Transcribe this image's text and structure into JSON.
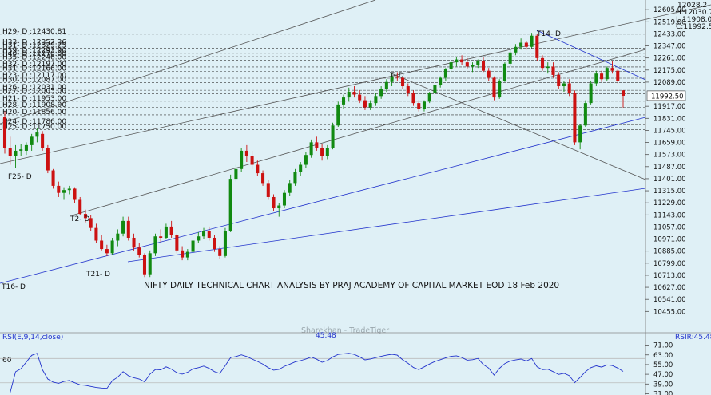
{
  "chart_data": {
    "type": "candlestick",
    "title": "NIFTY DAILY TECHNICAL CHART ANALYSIS BY PRAJ ACADEMY OF CAPITAL MARKET EOD 18 Feb 2020",
    "watermark": "Sharekhan - TradeTiger",
    "ohlc_readout": [
      "12028.2",
      "H:12030.75",
      "L:11908.05",
      "C:11992.50"
    ],
    "current_price": "11992.50",
    "y_ticks": [
      "12605.00",
      "12519.00",
      "12433.00",
      "12347.00",
      "12261.00",
      "12175.00",
      "12089.00",
      "11917.00",
      "11831.00",
      "11745.00",
      "11659.00",
      "11573.00",
      "11487.00",
      "11401.00",
      "11315.00",
      "11229.00",
      "11143.00",
      "11057.00",
      "10971.00",
      "10885.00",
      "10799.00",
      "10713.00",
      "10627.00",
      "10541.00",
      "10455.00"
    ],
    "ylim": [
      10400,
      12640
    ],
    "levels": [
      {
        "label": "H29- D :12430.81",
        "value": 12430.81
      },
      {
        "label": "H33- D :12352.36",
        "value": 12352.36
      },
      {
        "label": "H31- D :12329.25",
        "value": 12329.25
      },
      {
        "label": "H39- D :12293.90",
        "value": 12293.9
      },
      {
        "label": "H40- D :12270.00",
        "value": 12270.0
      },
      {
        "label": "H35- D :12246.00",
        "value": 12246.0
      },
      {
        "label": "H32- D :12197.00",
        "value": 12197.0
      },
      {
        "label": "H31- D :12166.00",
        "value": 12166.0
      },
      {
        "label": "H23- D :12117.00",
        "value": 12117.0
      },
      {
        "label": "H30- D :12087.00",
        "value": 12087.0
      },
      {
        "label": "H26- D :12031.00",
        "value": 12031.0
      },
      {
        "label": "H27- D :12005.00",
        "value": 12005.0
      },
      {
        "label": "H21- D :11953.00",
        "value": 11953.0
      },
      {
        "label": "H28- D :11908.00",
        "value": 11908.0
      },
      {
        "label": "H20- D :11856.00",
        "value": 11856.0
      },
      {
        "label": "H24- D :11786.00",
        "value": 11786.0
      },
      {
        "label": "H25- D :11750.00",
        "value": 11750.0
      }
    ],
    "pivot_labels": [
      "F25- D",
      "T21- D",
      "T16- D",
      "T14- D",
      "T2- D",
      "T- D",
      "D"
    ],
    "candles": [
      [
        11840,
        11880,
        11580,
        11620
      ],
      [
        11620,
        11700,
        11500,
        11560
      ],
      [
        11560,
        11640,
        11480,
        11600
      ],
      [
        11600,
        11650,
        11560,
        11610
      ],
      [
        11600,
        11660,
        11570,
        11640
      ],
      [
        11640,
        11720,
        11600,
        11700
      ],
      [
        11700,
        11760,
        11660,
        11730
      ],
      [
        11720,
        11740,
        11600,
        11620
      ],
      [
        11620,
        11640,
        11440,
        11460
      ],
      [
        11460,
        11470,
        11330,
        11350
      ],
      [
        11350,
        11380,
        11270,
        11300
      ],
      [
        11300,
        11340,
        11250,
        11320
      ],
      [
        11320,
        11350,
        11290,
        11330
      ],
      [
        11330,
        11340,
        11230,
        11250
      ],
      [
        11250,
        11270,
        11140,
        11150
      ],
      [
        11150,
        11180,
        11090,
        11120
      ],
      [
        11120,
        11140,
        11030,
        11050
      ],
      [
        11050,
        11080,
        10940,
        10960
      ],
      [
        10960,
        11000,
        10890,
        10900
      ],
      [
        10900,
        10930,
        10850,
        10870
      ],
      [
        10870,
        10980,
        10860,
        10960
      ],
      [
        10960,
        11040,
        10920,
        11010
      ],
      [
        11010,
        11130,
        10990,
        11100
      ],
      [
        11100,
        11130,
        10960,
        10980
      ],
      [
        10980,
        11010,
        10890,
        10910
      ],
      [
        10910,
        10940,
        10840,
        10860
      ],
      [
        10860,
        10870,
        10700,
        10720
      ],
      [
        10720,
        10890,
        10700,
        10870
      ],
      [
        10870,
        11010,
        10850,
        10990
      ],
      [
        10990,
        11040,
        10950,
        10980
      ],
      [
        10980,
        11080,
        10970,
        11060
      ],
      [
        11060,
        11100,
        10980,
        11000
      ],
      [
        11000,
        11010,
        10870,
        10890
      ],
      [
        10890,
        10920,
        10820,
        10840
      ],
      [
        10840,
        10900,
        10820,
        10880
      ],
      [
        10880,
        10980,
        10870,
        10960
      ],
      [
        10960,
        11020,
        10940,
        10990
      ],
      [
        10990,
        11050,
        10970,
        11030
      ],
      [
        11030,
        11060,
        10960,
        10980
      ],
      [
        10980,
        11000,
        10880,
        10900
      ],
      [
        10900,
        10920,
        10830,
        10850
      ],
      [
        10850,
        11050,
        10840,
        11030
      ],
      [
        11030,
        11430,
        11020,
        11400
      ],
      [
        11400,
        11500,
        11380,
        11470
      ],
      [
        11470,
        11620,
        11450,
        11600
      ],
      [
        11600,
        11640,
        11520,
        11560
      ],
      [
        11560,
        11600,
        11470,
        11500
      ],
      [
        11500,
        11530,
        11420,
        11440
      ],
      [
        11440,
        11460,
        11350,
        11370
      ],
      [
        11370,
        11390,
        11250,
        11270
      ],
      [
        11270,
        11290,
        11170,
        11190
      ],
      [
        11190,
        11230,
        11130,
        11210
      ],
      [
        11210,
        11320,
        11190,
        11300
      ],
      [
        11300,
        11390,
        11280,
        11370
      ],
      [
        11370,
        11470,
        11350,
        11450
      ],
      [
        11450,
        11520,
        11420,
        11500
      ],
      [
        11500,
        11590,
        11480,
        11570
      ],
      [
        11570,
        11680,
        11550,
        11660
      ],
      [
        11660,
        11700,
        11600,
        11620
      ],
      [
        11620,
        11650,
        11530,
        11560
      ],
      [
        11560,
        11640,
        11540,
        11620
      ],
      [
        11620,
        11800,
        11610,
        11780
      ],
      [
        11780,
        11950,
        11770,
        11930
      ],
      [
        11930,
        12000,
        11900,
        11980
      ],
      [
        11980,
        12050,
        11950,
        12020
      ],
      [
        12020,
        12060,
        11980,
        12000
      ],
      [
        12000,
        12030,
        11940,
        11960
      ],
      [
        11960,
        11990,
        11890,
        11910
      ],
      [
        11910,
        11960,
        11890,
        11940
      ],
      [
        11940,
        12010,
        11920,
        11990
      ],
      [
        11990,
        12060,
        11970,
        12040
      ],
      [
        12040,
        12110,
        12020,
        12090
      ],
      [
        12090,
        12150,
        12060,
        12130
      ],
      [
        12130,
        12160,
        12100,
        12120
      ],
      [
        12120,
        12130,
        12040,
        12060
      ],
      [
        12060,
        12080,
        11990,
        12010
      ],
      [
        12010,
        12030,
        11920,
        11940
      ],
      [
        11940,
        11960,
        11880,
        11900
      ],
      [
        11900,
        11960,
        11880,
        11950
      ],
      [
        11950,
        12020,
        11940,
        12010
      ],
      [
        12010,
        12080,
        12000,
        12070
      ],
      [
        12070,
        12130,
        12050,
        12120
      ],
      [
        12120,
        12190,
        12100,
        12180
      ],
      [
        12180,
        12240,
        12160,
        12230
      ],
      [
        12230,
        12270,
        12200,
        12250
      ],
      [
        12250,
        12280,
        12210,
        12230
      ],
      [
        12230,
        12260,
        12180,
        12200
      ],
      [
        12200,
        12230,
        12160,
        12210
      ],
      [
        12210,
        12250,
        12190,
        12240
      ],
      [
        12240,
        12270,
        12160,
        12170
      ],
      [
        12170,
        12190,
        12100,
        12120
      ],
      [
        12120,
        12130,
        11960,
        11980
      ],
      [
        11980,
        12110,
        11970,
        12100
      ],
      [
        12100,
        12230,
        12090,
        12220
      ],
      [
        12220,
        12320,
        12200,
        12300
      ],
      [
        12300,
        12360,
        12280,
        12340
      ],
      [
        12340,
        12400,
        12320,
        12370
      ],
      [
        12370,
        12380,
        12320,
        12340
      ],
      [
        12340,
        12440,
        12330,
        12420
      ],
      [
        12420,
        12430,
        12240,
        12260
      ],
      [
        12260,
        12280,
        12170,
        12190
      ],
      [
        12190,
        12230,
        12150,
        12200
      ],
      [
        12200,
        12230,
        12120,
        12140
      ],
      [
        12140,
        12160,
        12040,
        12060
      ],
      [
        12060,
        12100,
        12020,
        12080
      ],
      [
        12080,
        12110,
        11990,
        12010
      ],
      [
        12010,
        12030,
        11640,
        11660
      ],
      [
        11660,
        11790,
        11610,
        11780
      ],
      [
        11780,
        11960,
        11770,
        11940
      ],
      [
        11940,
        12100,
        11930,
        12080
      ],
      [
        12080,
        12170,
        12060,
        12150
      ],
      [
        12150,
        12170,
        12090,
        12110
      ],
      [
        12110,
        12200,
        12100,
        12190
      ],
      [
        12190,
        12240,
        12150,
        12170
      ],
      [
        12170,
        12180,
        12080,
        12100
      ],
      [
        12030,
        12030,
        11908,
        11992
      ]
    ],
    "rsi": {
      "label": "RSI(E,9,14,close)",
      "readout": "RSIR:45.48",
      "peak_label": "45.48",
      "y_ticks": [
        "71.00",
        "63.00",
        "55.00",
        "47.00",
        "39.00",
        "31.00"
      ],
      "left_tick": "60",
      "ylim": [
        30,
        74
      ]
    }
  },
  "colors": {
    "background": "#dff0f6",
    "bull": "#118a11",
    "bear": "#cc1111",
    "trend_blue": "#2233cc",
    "trend_gray": "#555555",
    "level_line": "#333333",
    "price_tag": "#ffffff"
  }
}
